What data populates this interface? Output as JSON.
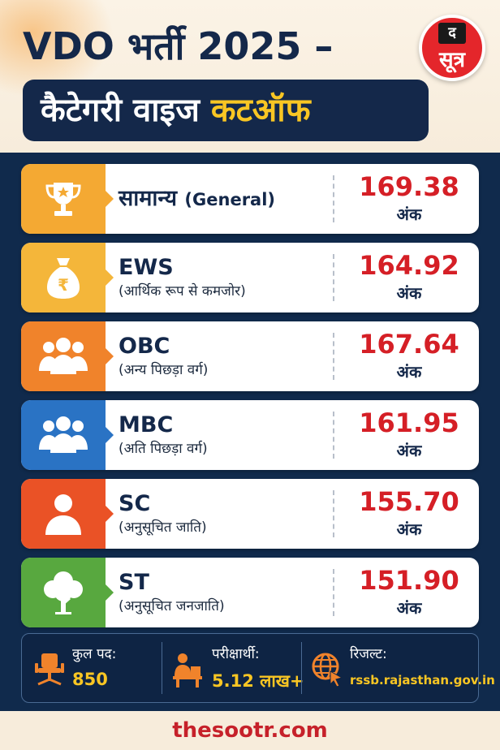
{
  "header": {
    "title": "VDO भर्ती 2025 –",
    "subtitle_white": "कैटेगरी वाइज",
    "subtitle_highlight": "कटऑफ",
    "logo_top": "द",
    "logo_bottom": "सूत्र"
  },
  "categories": [
    {
      "name": "सामान्य",
      "name_paren": "(General)",
      "sub": "",
      "score": "169.38",
      "unit": "अंक",
      "color": "#f4a933",
      "icon": "trophy-icon"
    },
    {
      "name": "EWS",
      "name_paren": "",
      "sub": "(आर्थिक रूप से कमजोर)",
      "score": "164.92",
      "unit": "अंक",
      "color": "#f4b63a",
      "icon": "money-bag-icon"
    },
    {
      "name": "OBC",
      "name_paren": "",
      "sub": "(अन्य पिछड़ा वर्ग)",
      "score": "167.64",
      "unit": "अंक",
      "color": "#f0832b",
      "icon": "group-icon"
    },
    {
      "name": "MBC",
      "name_paren": "",
      "sub": "(अति पिछड़ा वर्ग)",
      "score": "161.95",
      "unit": "अंक",
      "color": "#2a73c4",
      "icon": "group-icon"
    },
    {
      "name": "SC",
      "name_paren": "",
      "sub": "(अनुसूचित जाति)",
      "score": "155.70",
      "unit": "अंक",
      "color": "#ea5226",
      "icon": "person-icon"
    },
    {
      "name": "ST",
      "name_paren": "",
      "sub": "(अनुसूचित जनजाति)",
      "score": "151.90",
      "unit": "अंक",
      "color": "#58a83f",
      "icon": "tree-icon"
    }
  ],
  "stats": {
    "posts_label": "कुल पद:",
    "posts_value": "850",
    "candidates_label": "परीक्षार्थी:",
    "candidates_value": "5.12 लाख+",
    "result_label": "रिजल्ट:",
    "result_url": "rssb.rajasthan.gov.in"
  },
  "footer": {
    "site": "thesootr.com"
  },
  "colors": {
    "navy": "#14284a",
    "score_red": "#d51f26",
    "accent_yellow": "#f9c623",
    "stat_icon_orange": "#f0832b"
  }
}
